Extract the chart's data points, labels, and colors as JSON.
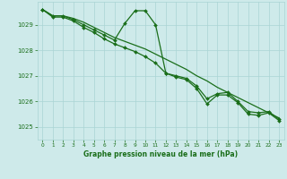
{
  "title": "Graphe pression niveau de la mer (hPa)",
  "background_color": "#ceeaea",
  "grid_color": "#aad4d4",
  "line_color": "#1a6e1a",
  "xlim": [
    -0.5,
    23.5
  ],
  "ylim": [
    1024.5,
    1029.9
  ],
  "yticks": [
    1025,
    1026,
    1027,
    1028,
    1029
  ],
  "xticks": [
    0,
    1,
    2,
    3,
    4,
    5,
    6,
    7,
    8,
    9,
    10,
    11,
    12,
    13,
    14,
    15,
    16,
    17,
    18,
    19,
    20,
    21,
    22,
    23
  ],
  "series1_x": [
    0,
    1,
    2,
    3,
    4,
    5,
    6,
    7,
    8,
    9,
    10,
    11,
    12,
    13,
    14,
    15,
    16,
    17,
    18,
    19,
    20,
    21,
    22,
    23
  ],
  "series1": [
    1029.6,
    1029.35,
    1029.35,
    1029.25,
    1029.1,
    1028.9,
    1028.7,
    1028.5,
    1028.35,
    1028.2,
    1028.05,
    1027.85,
    1027.65,
    1027.45,
    1027.25,
    1027.0,
    1026.8,
    1026.55,
    1026.35,
    1026.15,
    1025.95,
    1025.75,
    1025.55,
    1025.35
  ],
  "series2_x": [
    0,
    1,
    2,
    3,
    4,
    5,
    6,
    7,
    8,
    9,
    10,
    11,
    12,
    13,
    14,
    15,
    16,
    17,
    18,
    19,
    20,
    21,
    22,
    23
  ],
  "series2": [
    1029.6,
    1029.35,
    1029.35,
    1029.2,
    1029.0,
    1028.8,
    1028.6,
    1028.4,
    1029.05,
    1029.55,
    1029.55,
    1029.0,
    1027.1,
    1027.0,
    1026.9,
    1026.6,
    1026.1,
    1026.3,
    1026.35,
    1026.0,
    1025.6,
    1025.55,
    1025.6,
    1025.3
  ],
  "series3_x": [
    0,
    1,
    2,
    3,
    4,
    5,
    6,
    7,
    8,
    9,
    10,
    11,
    12,
    13,
    14,
    15,
    16,
    17,
    18,
    19,
    20,
    21,
    22,
    23
  ],
  "series3": [
    1029.6,
    1029.3,
    1029.3,
    1029.15,
    1028.9,
    1028.7,
    1028.45,
    1028.25,
    1028.1,
    1027.95,
    1027.75,
    1027.5,
    1027.1,
    1026.95,
    1026.85,
    1026.5,
    1025.9,
    1026.25,
    1026.25,
    1025.95,
    1025.5,
    1025.45,
    1025.55,
    1025.25
  ]
}
